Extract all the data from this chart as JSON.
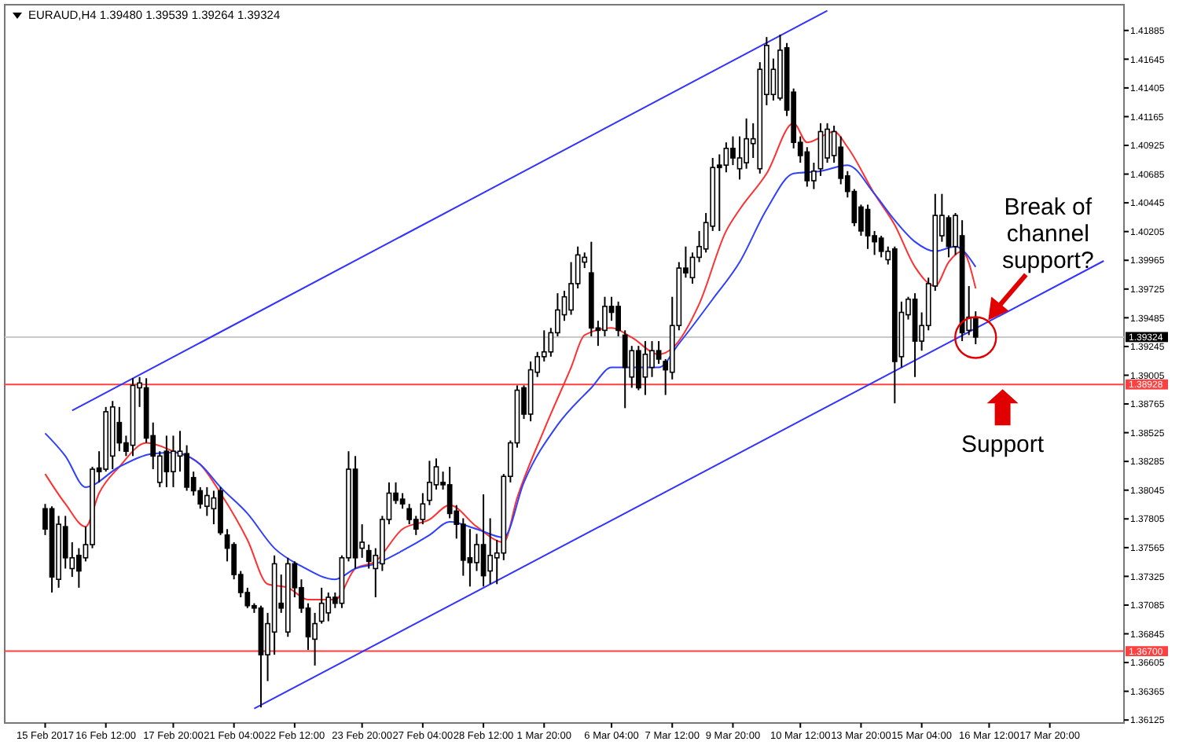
{
  "chart_data": {
    "type": "candlestick",
    "title": "EURAUD,H4  1.39480 1.39539 1.39264 1.39324",
    "categories": [
      "15 Feb 2017",
      null,
      null,
      null,
      null,
      null,
      null,
      null,
      null,
      "16 Feb 12:00",
      null,
      null,
      null,
      null,
      null,
      null,
      null,
      null,
      null,
      "17 Feb 20:00",
      null,
      null,
      null,
      null,
      null,
      null,
      null,
      null,
      "21 Feb 04:00",
      null,
      null,
      null,
      null,
      null,
      null,
      null,
      null,
      "22 Feb 12:00",
      null,
      null,
      null,
      null,
      null,
      null,
      null,
      null,
      null,
      "23 Feb 20:00",
      null,
      null,
      null,
      null,
      null,
      null,
      null,
      null,
      "27 Feb 04:00",
      null,
      null,
      null,
      null,
      null,
      null,
      null,
      null,
      "28 Feb 12:00",
      null,
      null,
      null,
      null,
      null,
      null,
      null,
      null,
      "1 Mar 20:00",
      null,
      null,
      null,
      null,
      null,
      null,
      null,
      null,
      null,
      "6 Mar 04:00",
      null,
      null,
      null,
      null,
      null,
      null,
      null,
      null,
      "7 Mar 12:00",
      null,
      null,
      null,
      null,
      null,
      null,
      null,
      null,
      "9 Mar 20:00",
      null,
      null,
      null,
      null,
      null,
      null,
      null,
      null,
      null,
      "10 Mar 12:00",
      null,
      null,
      null,
      null,
      null,
      null,
      null,
      null,
      "13 Mar 20:00",
      null,
      null,
      null,
      null,
      null,
      null,
      null,
      null,
      "15 Mar 04:00",
      null,
      null,
      null,
      null,
      null,
      null,
      null,
      null,
      null,
      "16 Mar 12:00",
      null,
      null,
      null,
      null,
      null,
      null,
      null,
      null,
      "17 Mar 20:00",
      null,
      null,
      null,
      null,
      null,
      null,
      null,
      null
    ],
    "ohlc": [
      [
        1.3789,
        1.3793,
        1.3767,
        1.3772
      ],
      [
        1.3789,
        1.3791,
        1.3719,
        1.3732
      ],
      [
        1.373,
        1.3783,
        1.3723,
        1.3776
      ],
      [
        1.3774,
        1.3783,
        1.3739,
        1.3748
      ],
      [
        1.3739,
        1.3761,
        1.3732,
        1.3748
      ],
      [
        1.375,
        1.3756,
        1.3723,
        1.3737
      ],
      [
        1.3748,
        1.3774,
        1.3745,
        1.3759
      ],
      [
        1.3759,
        1.3824,
        1.3756,
        1.3822
      ],
      [
        1.3823,
        1.3837,
        1.3811,
        1.382
      ],
      [
        1.3822,
        1.3874,
        1.382,
        1.387
      ],
      [
        1.3833,
        1.3879,
        1.3822,
        1.3874
      ],
      [
        1.3861,
        1.3874,
        1.3837,
        1.3844
      ],
      [
        1.3844,
        1.385,
        1.3833,
        1.3837
      ],
      [
        1.3842,
        1.3898,
        1.3833,
        1.3892
      ],
      [
        1.389,
        1.3899,
        1.3874,
        1.3894
      ],
      [
        1.389,
        1.3898,
        1.3844,
        1.3848
      ],
      [
        1.385,
        1.3861,
        1.3822,
        1.3833
      ],
      [
        1.3811,
        1.3837,
        1.3807,
        1.3833
      ],
      [
        1.3837,
        1.385,
        1.3807,
        1.382
      ],
      [
        1.382,
        1.385,
        1.3807,
        1.3837
      ],
      [
        1.3833,
        1.3854,
        1.382,
        1.3837
      ],
      [
        1.3835,
        1.3842,
        1.3804,
        1.3807
      ],
      [
        1.3815,
        1.382,
        1.38,
        1.3804
      ],
      [
        1.3804,
        1.3807,
        1.3789,
        1.3793
      ],
      [
        1.3791,
        1.3807,
        1.3783,
        1.38
      ],
      [
        1.3789,
        1.3804,
        1.3776,
        1.3798
      ],
      [
        1.3804,
        1.3807,
        1.3767,
        1.3769
      ],
      [
        1.3767,
        1.3772,
        1.3745,
        1.3756
      ],
      [
        1.3759,
        1.3761,
        1.373,
        1.3734
      ],
      [
        1.3734,
        1.3737,
        1.3715,
        1.3719
      ],
      [
        1.3719,
        1.3723,
        1.3706,
        1.3708
      ],
      [
        1.3708,
        1.371,
        1.3702,
        1.3706
      ],
      [
        1.3706,
        1.3708,
        1.3623,
        1.3667
      ],
      [
        1.3667,
        1.3702,
        1.3645,
        1.3693
      ],
      [
        1.3686,
        1.375,
        1.3667,
        1.3743
      ],
      [
        1.371,
        1.3734,
        1.3702,
        1.3706
      ],
      [
        1.3686,
        1.3748,
        1.3682,
        1.3743
      ],
      [
        1.3743,
        1.3745,
        1.3715,
        1.3723
      ],
      [
        1.3723,
        1.373,
        1.3702,
        1.3706
      ],
      [
        1.3706,
        1.371,
        1.3671,
        1.3682
      ],
      [
        1.368,
        1.3702,
        1.3658,
        1.3693
      ],
      [
        1.3695,
        1.3723,
        1.3693,
        1.371
      ],
      [
        1.3702,
        1.3719,
        1.3695,
        1.3715
      ],
      [
        1.3715,
        1.3719,
        1.3706,
        1.371
      ],
      [
        1.371,
        1.375,
        1.3706,
        1.3748
      ],
      [
        1.3748,
        1.3837,
        1.3745,
        1.3822
      ],
      [
        1.3822,
        1.3833,
        1.3739,
        1.3748
      ],
      [
        1.3756,
        1.3776,
        1.3748,
        1.3761
      ],
      [
        1.3754,
        1.3759,
        1.3739,
        1.3745
      ],
      [
        1.3739,
        1.3756,
        1.3715,
        1.375
      ],
      [
        1.3743,
        1.3783,
        1.3737,
        1.378
      ],
      [
        1.378,
        1.3811,
        1.3776,
        1.3802
      ],
      [
        1.3802,
        1.3811,
        1.3793,
        1.3796
      ],
      [
        1.3797,
        1.3802,
        1.3789,
        1.3793
      ],
      [
        1.3789,
        1.3793,
        1.3776,
        1.378
      ],
      [
        1.378,
        1.3783,
        1.3767,
        1.3772
      ],
      [
        1.378,
        1.3802,
        1.3776,
        1.3793
      ],
      [
        1.3796,
        1.3829,
        1.3792,
        1.3811
      ],
      [
        1.3809,
        1.3831,
        1.3805,
        1.3824
      ],
      [
        1.3811,
        1.382,
        1.3805,
        1.3809
      ],
      [
        1.3809,
        1.3824,
        1.3781,
        1.3785
      ],
      [
        1.3787,
        1.3792,
        1.3764,
        1.3776
      ],
      [
        1.3776,
        1.3781,
        1.3733,
        1.3746
      ],
      [
        1.3748,
        1.3772,
        1.3724,
        1.3744
      ],
      [
        1.3744,
        1.3768,
        1.3737,
        1.3759
      ],
      [
        1.3759,
        1.3801,
        1.3724,
        1.3733
      ],
      [
        1.3737,
        1.3781,
        1.3726,
        1.375
      ],
      [
        1.3748,
        1.3763,
        1.3726,
        1.3752
      ],
      [
        1.3752,
        1.3818,
        1.3746,
        1.3816
      ],
      [
        1.3816,
        1.3846,
        1.3811,
        1.3844
      ],
      [
        1.3844,
        1.3892,
        1.384,
        1.3888
      ],
      [
        1.389,
        1.3892,
        1.3864,
        1.3868
      ],
      [
        1.3868,
        1.3912,
        1.3862,
        1.3905
      ],
      [
        1.3903,
        1.392,
        1.3899,
        1.3916
      ],
      [
        1.3916,
        1.3938,
        1.3912,
        1.392
      ],
      [
        1.392,
        1.394,
        1.3916,
        1.3936
      ],
      [
        1.3936,
        1.3969,
        1.3933,
        1.3955
      ],
      [
        1.3951,
        1.3971,
        1.3946,
        1.3966
      ],
      [
        1.3955,
        1.3995,
        1.3951,
        1.3977
      ],
      [
        1.3977,
        1.4008,
        1.3973,
        1.4001
      ],
      [
        1.3995,
        1.4003,
        1.399,
        1.3999
      ],
      [
        1.3986,
        1.4012,
        1.3933,
        1.394
      ],
      [
        1.394,
        1.3946,
        1.3925,
        1.3938
      ],
      [
        1.3938,
        1.3966,
        1.3933,
        1.3958
      ],
      [
        1.3958,
        1.3966,
        1.3946,
        1.3953
      ],
      [
        1.3958,
        1.3962,
        1.3933,
        1.3938
      ],
      [
        1.3934,
        1.3938,
        1.3873,
        1.3907
      ],
      [
        1.3899,
        1.3925,
        1.389,
        1.3921
      ],
      [
        1.3921,
        1.3925,
        1.3888,
        1.389
      ],
      [
        1.3899,
        1.3929,
        1.3884,
        1.3918
      ],
      [
        1.3907,
        1.3929,
        1.3899,
        1.3921
      ],
      [
        1.3921,
        1.3929,
        1.391,
        1.3914
      ],
      [
        1.3912,
        1.3914,
        1.3884,
        1.3905
      ],
      [
        1.3903,
        1.3966,
        1.3897,
        1.3942
      ],
      [
        1.3942,
        1.3995,
        1.3938,
        1.399
      ],
      [
        1.399,
        1.4008,
        1.3982,
        1.3986
      ],
      [
        1.3982,
        1.4003,
        1.3977,
        1.3999
      ],
      [
        1.3999,
        1.4021,
        1.3995,
        1.4008
      ],
      [
        1.4006,
        1.4036,
        1.4003,
        1.4028
      ],
      [
        1.4025,
        1.4082,
        1.4021,
        1.4074
      ],
      [
        1.4076,
        1.4085,
        1.4021,
        1.4074
      ],
      [
        1.4076,
        1.4095,
        1.407,
        1.409
      ],
      [
        1.409,
        1.41,
        1.4076,
        1.4082
      ],
      [
        1.4073,
        1.41,
        1.4064,
        1.4082
      ],
      [
        1.4078,
        1.4115,
        1.4073,
        1.4098
      ],
      [
        1.4094,
        1.4111,
        1.4082,
        1.4098
      ],
      [
        1.4073,
        1.4162,
        1.4069,
        1.4156
      ],
      [
        1.4135,
        1.4183,
        1.4126,
        1.4176
      ],
      [
        1.4135,
        1.4165,
        1.413,
        1.4156
      ],
      [
        1.4132,
        1.4185,
        1.413,
        1.4172
      ],
      [
        1.4174,
        1.4178,
        1.4117,
        1.4122
      ],
      [
        1.4137,
        1.414,
        1.409,
        1.4095
      ],
      [
        1.4095,
        1.41,
        1.4078,
        1.4084
      ],
      [
        1.4087,
        1.4091,
        1.4058,
        1.4063
      ],
      [
        1.4063,
        1.4078,
        1.4056,
        1.4071
      ],
      [
        1.4073,
        1.4111,
        1.4067,
        1.4104
      ],
      [
        1.4082,
        1.4111,
        1.4078,
        1.4106
      ],
      [
        1.4084,
        1.4109,
        1.4078,
        1.4104
      ],
      [
        1.4091,
        1.41,
        1.406,
        1.4065
      ],
      [
        1.4067,
        1.4071,
        1.4049,
        1.4054
      ],
      [
        1.4054,
        1.4056,
        1.4025,
        1.4028
      ],
      [
        1.4041,
        1.4043,
        1.4017,
        1.4021
      ],
      [
        1.4039,
        1.4043,
        1.4006,
        1.4017
      ],
      [
        1.4017,
        1.4021,
        1.4001,
        1.4012
      ],
      [
        1.4015,
        1.4017,
        1.3999,
        1.4004
      ],
      [
        1.3997,
        1.4008,
        1.3993,
        1.4004
      ],
      [
        1.4006,
        1.4008,
        1.3877,
        1.3912
      ],
      [
        1.3916,
        1.3962,
        1.3907,
        1.3953
      ],
      [
        1.3951,
        1.3966,
        1.3947,
        1.3964
      ],
      [
        1.3964,
        1.3969,
        1.3899,
        1.3929
      ],
      [
        1.3929,
        1.3953,
        1.3921,
        1.3942
      ],
      [
        1.3942,
        1.3982,
        1.3938,
        1.3977
      ],
      [
        1.3975,
        1.4052,
        1.3971,
        1.4034
      ],
      [
        1.4017,
        1.4052,
        1.4012,
        1.4034
      ],
      [
        1.4032,
        1.4034,
        1.3999,
        1.4008
      ],
      [
        1.4008,
        1.4036,
        1.4001,
        1.4034
      ],
      [
        1.4017,
        1.403,
        1.3929,
        1.3936
      ],
      [
        1.3938,
        1.3975,
        1.3934,
        1.3949
      ],
      [
        1.3948,
        1.39539,
        1.39264,
        1.39324
      ],
      null,
      null,
      null,
      null,
      null,
      null,
      null,
      null,
      null,
      null,
      null,
      null,
      null,
      null,
      null,
      null,
      null,
      null,
      null
    ],
    "series": [
      {
        "type": "line",
        "color": "#ff3030",
        "values": [
          1.3818,
          null,
          null,
          1.3793,
          null,
          null,
          1.3774,
          null,
          1.3802,
          null,
          null,
          1.3824,
          null,
          null,
          null,
          1.3844,
          null,
          null,
          null,
          1.3837,
          null,
          null,
          null,
          1.3826,
          null,
          null,
          1.3802,
          null,
          null,
          null,
          1.3763,
          null,
          null,
          1.3726,
          null,
          null,
          1.3723,
          null,
          null,
          1.3713,
          null,
          null,
          null,
          1.3713,
          null,
          null,
          1.3739,
          null,
          null,
          1.3745,
          null,
          null,
          null,
          1.3772,
          null,
          null,
          null,
          1.378,
          null,
          null,
          1.3792,
          null,
          null,
          null,
          1.3774,
          null,
          null,
          null,
          1.3761,
          null,
          1.3798,
          null,
          null,
          null,
          1.3855,
          null,
          null,
          null,
          1.3907,
          null,
          1.3934,
          null,
          null,
          null,
          1.394,
          null,
          null,
          1.3932,
          null,
          null,
          null,
          1.3918,
          null,
          1.3923,
          null,
          null,
          null,
          1.396,
          null,
          null,
          null,
          1.4021,
          null,
          1.4039,
          null,
          null,
          null,
          1.4069,
          null,
          null,
          null,
          1.4111,
          null,
          1.4095,
          null,
          null,
          null,
          1.4104,
          null,
          1.4091,
          null,
          null,
          null,
          1.4052,
          null,
          null,
          1.4026,
          null,
          null,
          1.3991,
          null,
          null,
          1.3975,
          null,
          1.3995,
          null,
          1.4004,
          null,
          1.3973,
          null,
          null,
          null,
          null,
          null,
          null,
          null,
          null,
          null,
          null,
          null,
          null,
          null,
          null,
          null,
          null,
          null,
          null,
          null
        ]
      },
      {
        "type": "line",
        "color": "#3040ff",
        "values": [
          1.3852,
          null,
          null,
          1.3833,
          null,
          null,
          1.3807,
          null,
          null,
          null,
          null,
          1.3824,
          null,
          null,
          null,
          null,
          1.3835,
          null,
          null,
          1.3836,
          null,
          null,
          null,
          1.3826,
          null,
          null,
          1.3807,
          null,
          null,
          null,
          1.3785,
          null,
          null,
          null,
          1.3756,
          null,
          null,
          null,
          1.3741,
          null,
          null,
          null,
          null,
          1.373,
          null,
          null,
          1.3739,
          null,
          null,
          1.3743,
          null,
          null,
          null,
          1.3754,
          null,
          null,
          null,
          1.3767,
          null,
          null,
          1.3778,
          null,
          null,
          null,
          1.3772,
          null,
          null,
          null,
          1.3765,
          null,
          null,
          1.3811,
          null,
          null,
          null,
          null,
          1.3859,
          null,
          null,
          null,
          null,
          1.389,
          null,
          null,
          1.3907,
          null,
          null,
          1.3907,
          null,
          null,
          null,
          1.3907,
          null,
          null,
          1.3927,
          null,
          null,
          null,
          null,
          1.3964,
          null,
          null,
          null,
          1.3995,
          null,
          null,
          null,
          1.4039,
          null,
          null,
          null,
          1.4069,
          null,
          null,
          null,
          1.4071,
          null,
          null,
          null,
          1.4076,
          null,
          null,
          null,
          1.4052,
          null,
          null,
          1.403,
          null,
          null,
          1.4012,
          null,
          null,
          1.4004,
          null,
          null,
          1.4008,
          null,
          null,
          1.3991,
          null,
          null,
          null,
          null,
          null,
          null,
          null,
          null,
          null,
          null,
          null,
          null,
          null,
          null,
          null,
          null,
          null,
          null,
          null
        ]
      },
      {
        "type": "line",
        "color": "#3333ff",
        "values": [
          null,
          null,
          null,
          null,
          1.3871,
          null,
          null,
          null,
          null,
          null,
          null,
          null,
          null,
          null,
          null,
          null,
          null,
          null,
          null,
          null,
          null,
          null,
          null,
          null,
          null,
          null,
          null,
          null,
          null,
          null,
          null,
          null,
          null,
          null,
          null,
          null,
          null,
          null,
          null,
          null,
          null,
          null,
          null,
          null,
          null,
          null,
          null,
          null,
          null,
          null,
          null,
          null,
          null,
          null,
          null,
          null,
          null,
          null,
          null,
          null,
          null,
          null,
          null,
          null,
          null,
          null,
          null,
          null,
          null,
          null,
          null,
          null,
          null,
          null,
          null,
          null,
          null,
          null,
          null,
          null,
          null,
          null,
          null,
          null,
          null,
          null,
          null,
          null,
          null,
          null,
          null,
          null,
          null,
          null,
          null,
          null,
          null,
          null,
          null,
          null,
          null,
          null,
          null,
          null,
          null,
          null,
          null,
          null,
          null,
          null,
          null,
          null,
          null,
          null,
          null,
          null,
          1.4205,
          null,
          null,
          null,
          null,
          null,
          null,
          null,
          null,
          null,
          null,
          null,
          null,
          null,
          null,
          null,
          null,
          null,
          null,
          null,
          null,
          null,
          null,
          null,
          null,
          null,
          null,
          null,
          null,
          null,
          null,
          null,
          null,
          null,
          null,
          null,
          null,
          null,
          null,
          null,
          null,
          null
        ]
      },
      {
        "type": "line",
        "color": "#3333ff",
        "values": [
          null,
          null,
          null,
          null,
          null,
          null,
          null,
          null,
          null,
          null,
          null,
          null,
          null,
          null,
          null,
          null,
          null,
          null,
          null,
          null,
          null,
          null,
          null,
          null,
          null,
          null,
          null,
          null,
          null,
          null,
          null,
          1.3622,
          null,
          null,
          null,
          null,
          null,
          null,
          null,
          null,
          null,
          null,
          null,
          null,
          null,
          null,
          null,
          null,
          null,
          null,
          null,
          null,
          null,
          null,
          null,
          null,
          null,
          null,
          null,
          null,
          null,
          null,
          null,
          null,
          null,
          null,
          null,
          null,
          null,
          null,
          null,
          null,
          null,
          null,
          null,
          null,
          null,
          null,
          null,
          null,
          null,
          null,
          null,
          null,
          null,
          null,
          null,
          null,
          null,
          null,
          null,
          null,
          null,
          null,
          null,
          null,
          null,
          null,
          null,
          null,
          null,
          null,
          null,
          null,
          null,
          null,
          null,
          null,
          null,
          null,
          null,
          null,
          null,
          null,
          null,
          null,
          null,
          null,
          null,
          null,
          null,
          null,
          null,
          null,
          null,
          null,
          null,
          null,
          null,
          null,
          null,
          null,
          null,
          null,
          null,
          null,
          null,
          null,
          null,
          null,
          null,
          null,
          null,
          null,
          null,
          null,
          null,
          null,
          null,
          null,
          null,
          null,
          null,
          null,
          null,
          null,
          null,
          1.3996
        ]
      }
    ],
    "ylim": [
      1.361,
      1.421
    ],
    "yticks": [
      1.41885,
      1.41645,
      1.41405,
      1.41165,
      1.40925,
      1.40685,
      1.40445,
      1.40205,
      1.39965,
      1.39725,
      1.39485,
      1.39245,
      1.39005,
      1.38765,
      1.38525,
      1.38285,
      1.38045,
      1.37805,
      1.37565,
      1.37325,
      1.37085,
      1.36845,
      1.36605,
      1.36365,
      1.36125
    ],
    "ref_lines": [
      {
        "axis": "y",
        "value": 1.39324,
        "label": "1.39324",
        "color": "#c8c8c8"
      },
      {
        "axis": "y",
        "value": 1.38928,
        "label": "1.38928",
        "color": "#ff4040"
      },
      {
        "axis": "y",
        "value": 1.367,
        "label": "1.36700",
        "color": "#ff4040"
      }
    ],
    "annotations": [
      {
        "text": "Break of channel support?",
        "y": 1.3932
      },
      {
        "text": "Support",
        "y": 1.38928
      }
    ]
  }
}
